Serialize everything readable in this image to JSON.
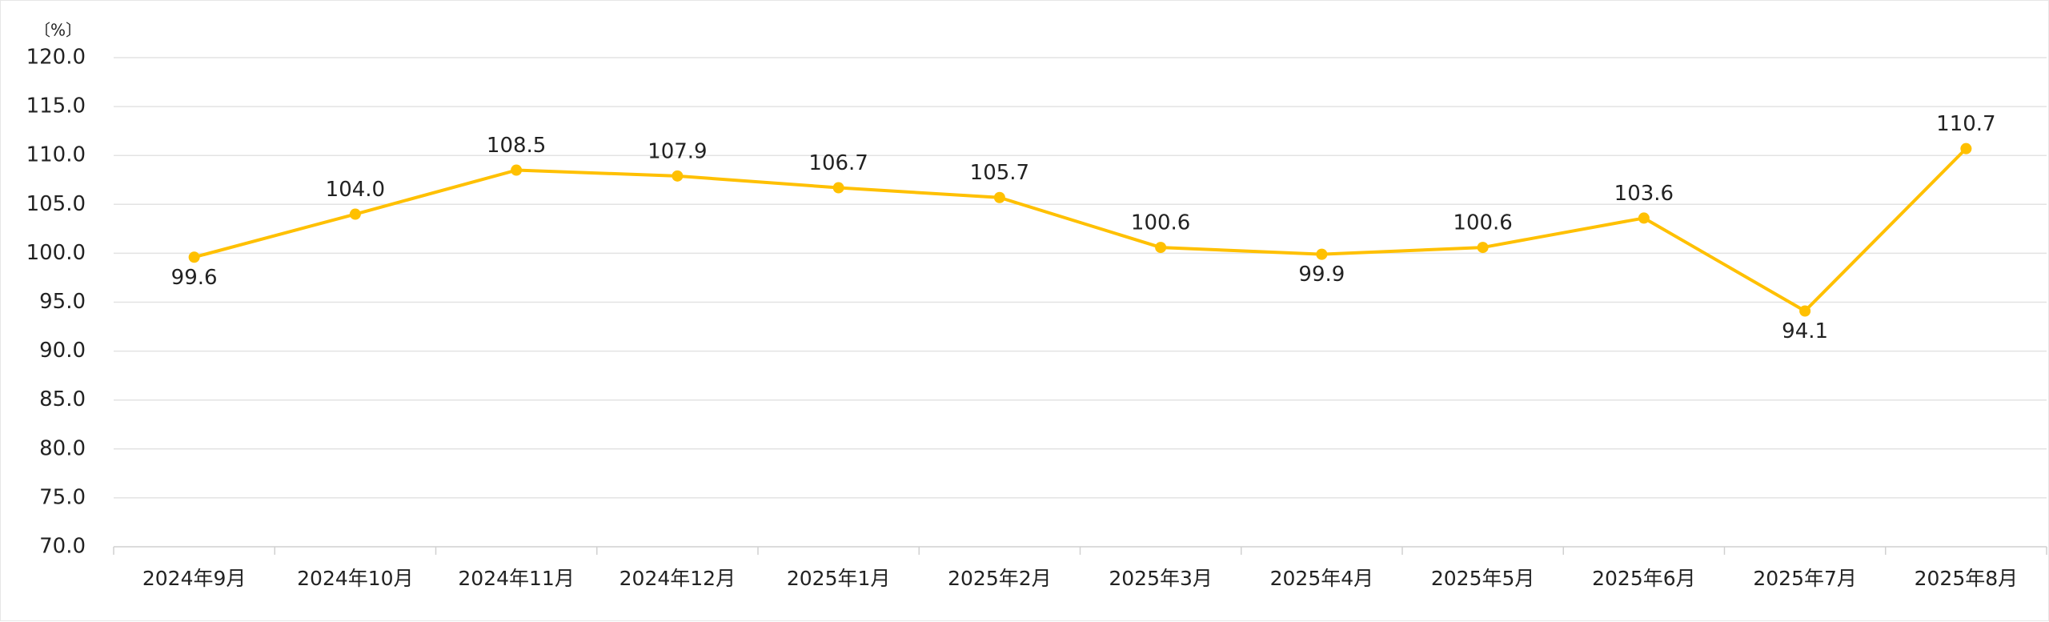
{
  "chart_data": {
    "type": "line",
    "unit_label": "〔%〕",
    "categories": [
      "2024年9月",
      "2024年10月",
      "2024年11月",
      "2024年12月",
      "2025年1月",
      "2025年2月",
      "2025年3月",
      "2025年4月",
      "2025年5月",
      "2025年6月",
      "2025年7月",
      "2025年8月"
    ],
    "series": [
      {
        "values": [
          99.6,
          104.0,
          108.5,
          107.9,
          106.7,
          105.7,
          100.6,
          99.9,
          100.6,
          103.6,
          94.1,
          110.7
        ]
      }
    ],
    "data_labels": [
      "99.6",
      "104.0",
      "108.5",
      "107.9",
      "106.7",
      "105.7",
      "100.6",
      "99.9",
      "100.6",
      "103.6",
      "94.1",
      "110.7"
    ],
    "data_label_position": [
      "below",
      "above",
      "above",
      "above",
      "above",
      "above",
      "above",
      "below",
      "above",
      "above",
      "below",
      "above"
    ],
    "y_ticks": [
      "70.0",
      "75.0",
      "80.0",
      "85.0",
      "90.0",
      "95.0",
      "100.0",
      "105.0",
      "110.0",
      "115.0",
      "120.0"
    ],
    "ylim": [
      70,
      120
    ],
    "ystep": 5,
    "grid": true,
    "legend": "none",
    "colors": {
      "line": "#FFC000",
      "grid": "#e3e3e3"
    }
  }
}
